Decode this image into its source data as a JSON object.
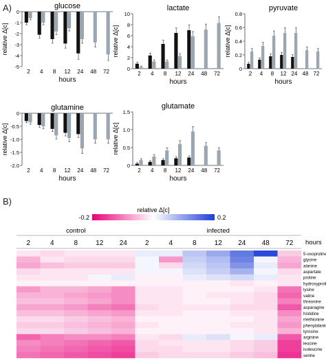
{
  "panel_a_label": "A)",
  "panel_b_label": "B)",
  "chart_data": [
    {
      "type": "bar",
      "title": "glucose",
      "xlabel": "hours",
      "ylabel": "relative Δ[c]",
      "categories": [
        "2",
        "4",
        "8",
        "12",
        "24",
        "48",
        "72"
      ],
      "ylim": [
        -5,
        0
      ],
      "yticks": [
        0,
        -1,
        -2,
        -3,
        -4,
        -5
      ],
      "series": [
        {
          "name": "control",
          "color": "#111111",
          "values": [
            -1.0,
            -2.1,
            -2.5,
            -2.9,
            -3.8,
            null,
            null
          ]
        },
        {
          "name": "infected",
          "color": "#9aa6b0",
          "values": [
            -0.6,
            -1.0,
            -1.8,
            -1.5,
            -2.5,
            -2.8,
            -3.9
          ]
        }
      ]
    },
    {
      "type": "bar",
      "title": "lactate",
      "xlabel": "hours",
      "ylabel": "relative Δ[c]",
      "categories": [
        "2",
        "4",
        "8",
        "12",
        "24",
        "48",
        "72"
      ],
      "ylim": [
        0,
        10
      ],
      "yticks": [
        0,
        2,
        4,
        6,
        8,
        10
      ],
      "series": [
        {
          "name": "control",
          "color": "#111111",
          "values": [
            0.9,
            2.4,
            4.5,
            6.5,
            7.0,
            null,
            null
          ]
        },
        {
          "name": "infected",
          "color": "#9aa6b0",
          "values": [
            0.3,
            1.3,
            1.3,
            2.3,
            5.9,
            7.1,
            8.3
          ]
        }
      ]
    },
    {
      "type": "bar",
      "title": "pyruvate",
      "xlabel": "hours",
      "ylabel": "relative Δ[c]",
      "categories": [
        "2",
        "4",
        "8",
        "12",
        "24",
        "48",
        "72"
      ],
      "ylim": [
        0,
        0.8
      ],
      "yticks": [
        0,
        0.2,
        0.4,
        0.6,
        0.8
      ],
      "series": [
        {
          "name": "control",
          "color": "#111111",
          "values": [
            0.07,
            0.13,
            0.18,
            0.2,
            0.17,
            null,
            null
          ]
        },
        {
          "name": "infected",
          "color": "#9aa6b0",
          "values": [
            0.25,
            0.33,
            0.48,
            0.52,
            0.52,
            0.27,
            0.25
          ]
        }
      ]
    },
    {
      "type": "bar",
      "title": "glutamine",
      "xlabel": "hours",
      "ylabel": "relative Δ[c]",
      "categories": [
        "2",
        "4",
        "8",
        "12",
        "24",
        "48",
        "72"
      ],
      "ylim": [
        -2,
        0
      ],
      "yticks": [
        0,
        -0.5,
        -1.0,
        -1.5,
        -2.0
      ],
      "series": [
        {
          "name": "control",
          "color": "#111111",
          "values": [
            -0.3,
            -0.45,
            -0.6,
            -0.75,
            -0.8,
            null,
            null
          ]
        },
        {
          "name": "infected",
          "color": "#9aa6b0",
          "values": [
            -0.35,
            -0.5,
            -0.85,
            -0.95,
            -1.35,
            -1.0,
            -1.0
          ]
        }
      ]
    },
    {
      "type": "bar",
      "title": "glutamate",
      "xlabel": "hours",
      "ylabel": "relative Δ[c]",
      "categories": [
        "2",
        "4",
        "8",
        "12",
        "24",
        "48",
        "72"
      ],
      "ylim": [
        0,
        1.5
      ],
      "yticks": [
        0,
        0.5,
        1.0,
        1.5
      ],
      "series": [
        {
          "name": "control",
          "color": "#111111",
          "values": [
            0.05,
            0.1,
            0.15,
            0.2,
            0.22,
            null,
            null
          ]
        },
        {
          "name": "infected",
          "color": "#9aa6b0",
          "values": [
            0.15,
            0.25,
            0.42,
            0.6,
            0.95,
            0.55,
            0.42
          ]
        }
      ]
    },
    {
      "type": "heatmap",
      "colorbar": {
        "label": "relative Δ[c]",
        "min": -0.2,
        "max": 0.2,
        "min_label": "-0.2",
        "max_label": "0.2",
        "neg_color": "#e8007a",
        "pos_color": "#1f3fd6"
      },
      "group_labels": [
        "control",
        "infected"
      ],
      "hours_label": "hours",
      "columns": [
        "2",
        "4",
        "8",
        "12",
        "24",
        "2",
        "4",
        "8",
        "12",
        "24",
        "48",
        "72"
      ],
      "column_groups": [
        0,
        0,
        0,
        0,
        0,
        1,
        1,
        1,
        1,
        1,
        1,
        1
      ],
      "rows": [
        "5-oxoproline",
        "glycine",
        "alanine",
        "aspartate",
        "proline",
        "hydroxyproline",
        "lysine",
        "valine",
        "threonine",
        "asparagine",
        "histidine",
        "methionine",
        "phenylalanine",
        "tyrosine",
        "arginine",
        "leucine",
        "isoleucine",
        "serine"
      ],
      "values": [
        [
          -0.02,
          -0.03,
          -0.02,
          -0.02,
          -0.02,
          0.02,
          0.02,
          0.06,
          0.09,
          0.14,
          0.19,
          -0.04
        ],
        [
          -0.06,
          -0.02,
          -0.03,
          -0.03,
          -0.03,
          0.01,
          -0.08,
          0.05,
          0.07,
          0.13,
          0.01,
          -0.06
        ],
        [
          -0.07,
          -0.05,
          -0.04,
          -0.04,
          -0.04,
          0.01,
          -0.03,
          0.04,
          0.06,
          0.11,
          0.02,
          -0.07
        ],
        [
          -0.03,
          -0.02,
          -0.02,
          -0.02,
          -0.02,
          0.01,
          0.01,
          0.03,
          0.05,
          0.08,
          0.01,
          -0.03
        ],
        [
          -0.02,
          -0.02,
          -0.02,
          0.01,
          0.02,
          -0.01,
          -0.01,
          0.02,
          0.03,
          0.04,
          0.02,
          -0.02
        ],
        [
          -0.01,
          -0.01,
          -0.01,
          -0.01,
          -0.01,
          -0.01,
          -0.01,
          -0.01,
          -0.01,
          -0.02,
          -0.01,
          -0.02
        ],
        [
          -0.08,
          -0.06,
          -0.06,
          -0.07,
          -0.09,
          -0.02,
          -0.02,
          -0.01,
          -0.01,
          -0.01,
          -0.02,
          -0.11
        ],
        [
          -0.06,
          -0.06,
          -0.07,
          -0.08,
          -0.09,
          -0.02,
          -0.02,
          -0.01,
          -0.02,
          -0.02,
          -0.03,
          -0.12
        ],
        [
          -0.05,
          -0.05,
          -0.06,
          -0.07,
          -0.09,
          -0.02,
          -0.02,
          -0.01,
          -0.01,
          -0.02,
          -0.03,
          -0.1
        ],
        [
          -0.07,
          -0.07,
          -0.08,
          -0.1,
          -0.11,
          -0.03,
          -0.02,
          -0.02,
          -0.02,
          -0.03,
          -0.03,
          -0.13
        ],
        [
          -0.05,
          -0.05,
          -0.06,
          -0.07,
          -0.08,
          -0.02,
          -0.02,
          -0.01,
          -0.01,
          -0.02,
          -0.02,
          -0.09
        ],
        [
          -0.03,
          -0.03,
          -0.04,
          -0.05,
          -0.06,
          -0.01,
          -0.01,
          -0.01,
          -0.01,
          -0.01,
          -0.02,
          -0.07
        ],
        [
          -0.04,
          -0.04,
          -0.05,
          -0.06,
          -0.07,
          -0.02,
          -0.01,
          -0.01,
          -0.01,
          -0.02,
          -0.02,
          -0.08
        ],
        [
          -0.03,
          -0.03,
          -0.04,
          -0.05,
          -0.06,
          -0.01,
          -0.01,
          -0.01,
          -0.01,
          -0.01,
          -0.02,
          -0.06
        ],
        [
          -0.12,
          -0.1,
          -0.09,
          -0.09,
          -0.1,
          -0.02,
          -0.03,
          0.02,
          0.03,
          0.01,
          0.02,
          -0.13
        ],
        [
          -0.09,
          -0.1,
          -0.11,
          -0.12,
          -0.13,
          -0.03,
          -0.02,
          -0.02,
          -0.02,
          -0.03,
          -0.04,
          -0.15
        ],
        [
          -0.1,
          -0.11,
          -0.12,
          -0.13,
          -0.14,
          -0.03,
          -0.03,
          -0.02,
          -0.02,
          -0.03,
          -0.04,
          -0.15
        ],
        [
          -0.11,
          -0.12,
          -0.13,
          -0.14,
          -0.15,
          -0.04,
          -0.03,
          -0.03,
          -0.03,
          -0.04,
          -0.05,
          -0.16
        ]
      ]
    }
  ]
}
